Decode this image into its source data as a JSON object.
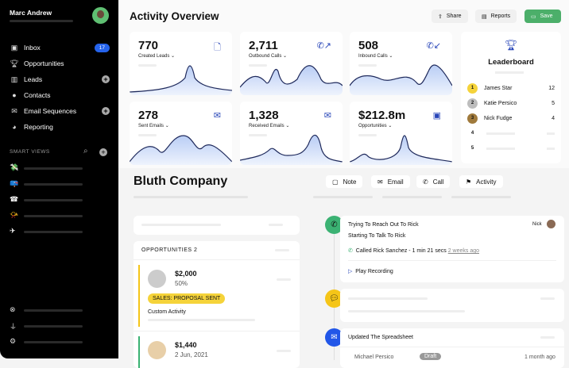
{
  "sidebar": {
    "user_name": "Marc Andrew",
    "items": [
      {
        "label": "Inbox",
        "icon": "inbox-icon",
        "badge": "17"
      },
      {
        "label": "Opportunities",
        "icon": "trophy-icon"
      },
      {
        "label": "Leads",
        "icon": "building-icon"
      },
      {
        "label": "Contacts",
        "icon": "person-icon"
      },
      {
        "label": "Email Sequences",
        "icon": "envelopes-icon"
      },
      {
        "label": "Reporting",
        "icon": "pie-chart-icon"
      }
    ],
    "smart_views_label": "SMART VIEWS",
    "smart_view_icons": [
      "money-icon",
      "mailbox-icon",
      "phone-icon",
      "megaphone-icon",
      "airplane-icon"
    ],
    "footer_icons": [
      "help-icon",
      "plug-icon",
      "gear-icon"
    ]
  },
  "header": {
    "title": "Activity Overview",
    "share": "Share",
    "reports": "Reports",
    "save": "Save",
    "save_color": "#4caf6a"
  },
  "stats": [
    {
      "value": "770",
      "label": "Created Leads",
      "icon": "file-plus-icon"
    },
    {
      "value": "2,711",
      "label": "Outbound Calls",
      "icon": "phone-outgoing-icon"
    },
    {
      "value": "508",
      "label": "Inbound Calls",
      "icon": "phone-incoming-icon"
    },
    {
      "value": "278",
      "label": "Sent Emails",
      "icon": "mail-sent-icon"
    },
    {
      "value": "1,328",
      "label": "Received Emails",
      "icon": "mail-received-icon"
    },
    {
      "value": "$212.8m",
      "label": "Opportunities",
      "icon": "money-icon"
    }
  ],
  "leaderboard": {
    "title": "Leaderboard",
    "rows": [
      {
        "rank": "1",
        "name": "James Star",
        "score": "12",
        "color": "#f5d33a"
      },
      {
        "rank": "2",
        "name": "Katie Persico",
        "score": "5",
        "color": "#bdbdbd"
      },
      {
        "rank": "3",
        "name": "Nick Fudge",
        "score": "4",
        "color": "#a07a3c"
      },
      {
        "rank": "4"
      },
      {
        "rank": "5"
      }
    ]
  },
  "company": {
    "name": "Bluth Company",
    "actions": [
      "Note",
      "Email",
      "Call",
      "Activity"
    ],
    "opportunities_label": "OPPORTUNITIES",
    "opportunities_count": "2",
    "opps": [
      {
        "amount": "$2,000",
        "sub": "50%",
        "status": "SALES: PROPOSAL SENT",
        "activity": "Custom Activity",
        "accent": "#f5c518"
      },
      {
        "amount": "$1,440",
        "sub": "2 Jun, 2021",
        "accent": "#3bb273"
      }
    ]
  },
  "timeline": [
    {
      "title": "Trying To Reach Out To Rick",
      "subtitle": "Starting To Talk To Rick",
      "user": "Nick",
      "call": "Called Rick Sanchez - 1 min 21 secs",
      "ago": "2 weeks ago",
      "play": "Play Recording",
      "color": "#3bb273"
    },
    {
      "color": "#f5c518"
    },
    {
      "title": "Updated The Spreadsheet",
      "person": "Michael Persico",
      "badge": "Draft",
      "ago": "1 month ago",
      "color": "#2156e8"
    }
  ]
}
